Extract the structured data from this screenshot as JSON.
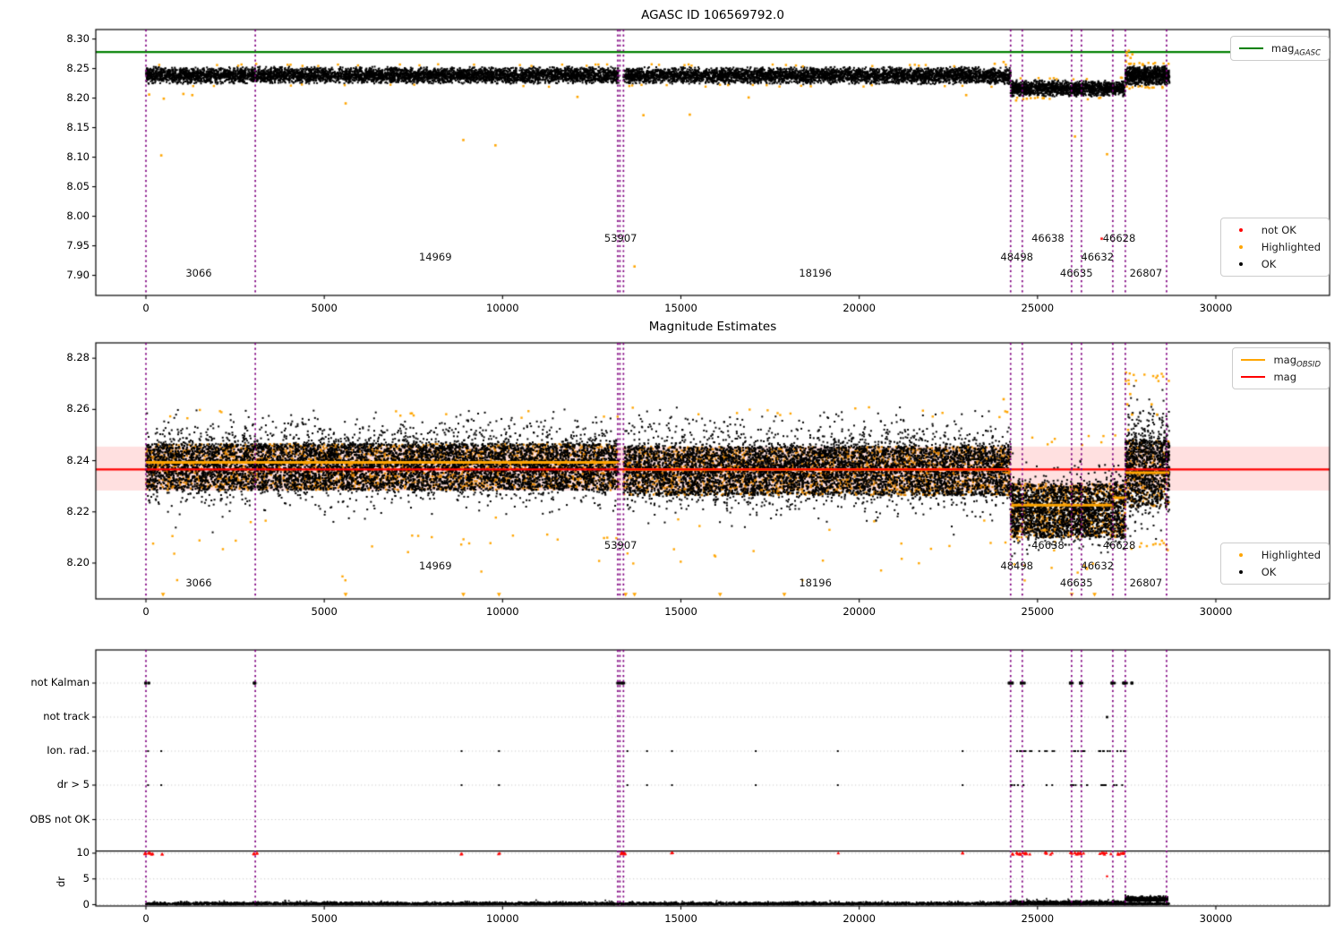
{
  "colors": {
    "green": "#008000",
    "red": "#ff0000",
    "orange": "#ffa500",
    "black": "#000000",
    "purple": "#800080",
    "pink_band": "rgba(255,0,0,0.12)",
    "grid": "#c9c9c9",
    "core_orange": "#de8300",
    "axis": "#000000"
  },
  "x_axis": {
    "ticks": [
      0,
      5000,
      10000,
      15000,
      20000,
      25000,
      30000
    ],
    "tick_labels": [
      "0",
      "5000",
      "10000",
      "15000",
      "20000",
      "25000",
      "30000"
    ],
    "xlim": [
      -1406,
      33189
    ]
  },
  "vlines_x": [
    0,
    3066,
    13230,
    13290,
    13390,
    24246,
    24573,
    25955,
    26231,
    27111,
    27462,
    28618
  ],
  "obsid_annotations": [
    {
      "text": "3066",
      "x": 1480,
      "row": 2
    },
    {
      "text": "14969",
      "x": 8116,
      "row": 1
    },
    {
      "text": "53907",
      "x": 13310,
      "row": 0
    },
    {
      "text": "18196",
      "x": 18770,
      "row": 2
    },
    {
      "text": "48498",
      "x": 24420,
      "row": 1
    },
    {
      "text": "46638",
      "x": 25290,
      "row": 0
    },
    {
      "text": "46635",
      "x": 26090,
      "row": 2
    },
    {
      "text": "46632",
      "x": 26680,
      "row": 1
    },
    {
      "text": "46628",
      "x": 27290,
      "row": 0
    },
    {
      "text": "26807",
      "x": 28040,
      "row": 2
    }
  ],
  "legends": [
    {
      "entries": [
        {
          "type": "line",
          "color": "#008000",
          "main": "mag",
          "sub": "AGASC"
        }
      ]
    },
    {
      "entries": [
        {
          "type": "dot",
          "color": "#ff0000",
          "label": "not OK"
        },
        {
          "type": "dot",
          "color": "#ffa500",
          "label": "Highlighted"
        },
        {
          "type": "dot",
          "color": "#000000",
          "label": "OK"
        }
      ]
    },
    {
      "entries": [
        {
          "type": "line",
          "color": "#ffa500",
          "main": "mag",
          "sub": "OBSID"
        },
        {
          "type": "line",
          "color": "#ff0000",
          "main": "mag",
          "sub": ""
        }
      ]
    },
    {
      "entries": [
        {
          "type": "dot",
          "color": "#ffa500",
          "label": "Highlighted"
        },
        {
          "type": "dot",
          "color": "#000000",
          "label": "OK"
        }
      ]
    }
  ],
  "chart_data": [
    {
      "type": "scatter",
      "title": "AGASC ID 106569792.0",
      "ylim": [
        7.866,
        8.316
      ],
      "y_ticks": [
        8.3,
        8.25,
        8.2,
        8.15,
        8.1,
        8.05,
        8.0,
        7.95,
        7.9
      ],
      "y_tick_labels": [
        "8.30",
        "8.25",
        "8.20",
        "8.15",
        "8.10",
        "8.05",
        "8.00",
        "7.95",
        "7.90"
      ],
      "hline_mag_agasc": 8.278,
      "black_segments": [
        {
          "x0": 0,
          "x1": 13250,
          "yc": 8.2385,
          "half": 0.0135,
          "n": 5200
        },
        {
          "x0": 13390,
          "x1": 24246,
          "yc": 8.238,
          "half": 0.0135,
          "n": 4300
        },
        {
          "x0": 24246,
          "x1": 27462,
          "yc": 8.2165,
          "half": 0.013,
          "n": 1500
        },
        {
          "x0": 27462,
          "x1": 28700,
          "yc": 8.238,
          "half": 0.016,
          "n": 800
        }
      ],
      "orange_edge_count": 110,
      "orange_outliers": [
        [
          430,
          8.103
        ],
        [
          5600,
          8.191
        ],
        [
          8900,
          8.129
        ],
        [
          9800,
          8.12
        ],
        [
          13700,
          7.915
        ],
        [
          26050,
          8.135
        ],
        [
          26950,
          8.105
        ],
        [
          12100,
          8.202
        ],
        [
          90,
          8.206
        ],
        [
          500,
          8.199
        ],
        [
          1300,
          8.205
        ],
        [
          13950,
          8.171
        ],
        [
          15250,
          8.172
        ],
        [
          1050,
          8.207
        ],
        [
          16900,
          8.201
        ],
        [
          23000,
          8.205
        ],
        [
          24400,
          8.196
        ],
        [
          24700,
          8.199
        ],
        [
          27500,
          8.277
        ],
        [
          27520,
          8.272
        ],
        [
          27560,
          8.28
        ],
        [
          27610,
          8.268
        ],
        [
          27660,
          8.274
        ],
        [
          27480,
          8.262
        ],
        [
          24050,
          8.261
        ],
        [
          23800,
          8.258
        ]
      ],
      "red_points": [
        [
          26800,
          7.962
        ]
      ]
    },
    {
      "type": "scatter",
      "title": "Magnitude Estimates",
      "ylim": [
        8.186,
        8.286
      ],
      "y_ticks": [
        8.28,
        8.26,
        8.24,
        8.22,
        8.2
      ],
      "y_tick_labels": [
        "8.28",
        "8.26",
        "8.24",
        "8.22",
        "8.20"
      ],
      "red_line_mag": 8.2366,
      "pink_band": [
        8.2283,
        8.2455
      ],
      "orange_obsid_segments": [
        {
          "x0": 0,
          "x1": 13250,
          "mag": 8.2393
        },
        {
          "x0": 13390,
          "x1": 24246,
          "mag": 8.2365
        },
        {
          "x0": 24246,
          "x1": 27111,
          "mag": 8.2226
        },
        {
          "x0": 27111,
          "x1": 27462,
          "mag": 8.2255
        },
        {
          "x0": 27462,
          "x1": 28700,
          "mag": 8.2353
        }
      ],
      "core_bands": [
        {
          "x0": 0,
          "x1": 13250,
          "m0": 8.2285,
          "m1": 8.2465,
          "no": 2600,
          "nb": 3400
        },
        {
          "x0": 13390,
          "x1": 24246,
          "m0": 8.2265,
          "m1": 8.2455,
          "no": 2200,
          "nb": 2900
        },
        {
          "x0": 24246,
          "x1": 27462,
          "m0": 8.21,
          "m1": 8.231,
          "no": 800,
          "nb": 1000
        },
        {
          "x0": 27462,
          "x1": 28700,
          "m0": 8.222,
          "m1": 8.248,
          "no": 250,
          "nb": 380
        }
      ],
      "black_fringe": [
        {
          "x0": 0,
          "x1": 13250,
          "yc": 8.239,
          "sig": 0.0078,
          "n": 3200,
          "lo": 8.207,
          "hi": 8.26
        },
        {
          "x0": 13390,
          "x1": 24246,
          "yc": 8.2375,
          "sig": 0.008,
          "n": 2800,
          "lo": 8.205,
          "hi": 8.261
        },
        {
          "x0": 24246,
          "x1": 27462,
          "yc": 8.2205,
          "sig": 0.0068,
          "n": 950,
          "lo": 8.196,
          "hi": 8.25
        },
        {
          "x0": 27462,
          "x1": 28700,
          "yc": 8.2385,
          "sig": 0.0105,
          "n": 650,
          "lo": 8.205,
          "hi": 8.275
        }
      ],
      "orange_low": {
        "n": 40,
        "x0": 200,
        "x1": 26800,
        "m0": 8.193,
        "m1": 8.219
      },
      "orange_edge_count": 90,
      "orange_high_cluster": [
        [
          27520,
          8.262
        ],
        [
          27560,
          8.27
        ],
        [
          27600,
          8.266
        ],
        [
          27650,
          8.258
        ],
        [
          27540,
          8.252
        ],
        [
          28200,
          8.262
        ],
        [
          28350,
          8.258
        ],
        [
          24050,
          8.264
        ],
        [
          24150,
          8.259
        ]
      ],
      "clip_triangles_x": [
        480,
        5600,
        8900,
        9900,
        13450,
        13700,
        16100,
        17900,
        25960,
        26600
      ]
    },
    {
      "type": "scatter",
      "title": "",
      "ylabel": "dr",
      "categories": [
        "not Kalman",
        "not track",
        "Ion. rad.",
        "dr > 5",
        "OBS not OK"
      ],
      "dr_tick_labels": [
        "10",
        "5",
        "0"
      ],
      "dr_ticks": [
        10,
        5,
        0
      ],
      "dr_hline": 10.4,
      "not_kalman_clusters": [
        [
          30,
          120,
          5
        ],
        [
          3066,
          80,
          5
        ],
        [
          13310,
          200,
          9
        ],
        [
          24246,
          160,
          7
        ],
        [
          24573,
          120,
          6
        ],
        [
          25955,
          90,
          5
        ],
        [
          26231,
          90,
          5
        ],
        [
          27111,
          120,
          6
        ],
        [
          27462,
          150,
          7
        ],
        [
          27680,
          100,
          4
        ]
      ],
      "not_track_points": [
        26950
      ],
      "ion_rad_singles": [
        60,
        430,
        8850,
        9900,
        13500,
        14050,
        14750,
        17100,
        19400,
        22900,
        25050
      ],
      "ion_rad_clusters": [
        [
          24550,
          600,
          8
        ],
        [
          25350,
          280,
          4
        ],
        [
          26150,
          520,
          8
        ],
        [
          26900,
          380,
          6
        ],
        [
          27350,
          260,
          5
        ]
      ],
      "dr5_singles": [
        60,
        430,
        8850,
        9900,
        13500,
        14050,
        14750,
        17100,
        19400,
        22900
      ],
      "dr5_clusters": [
        [
          24550,
          600,
          6
        ],
        [
          25350,
          280,
          3
        ],
        [
          26150,
          520,
          8
        ],
        [
          27050,
          700,
          8
        ]
      ],
      "obs_not_ok_points": [],
      "red_dr10_clusters": [
        [
          80,
          220,
          9
        ],
        [
          430,
          60,
          2
        ],
        [
          3066,
          110,
          5
        ],
        [
          8850,
          40,
          2
        ],
        [
          9900,
          40,
          2
        ],
        [
          13360,
          220,
          9
        ],
        [
          14750,
          40,
          2
        ],
        [
          19400,
          30,
          1
        ],
        [
          22900,
          40,
          2
        ],
        [
          24520,
          560,
          14
        ],
        [
          25330,
          260,
          5
        ],
        [
          26150,
          480,
          10
        ],
        [
          26900,
          340,
          8
        ],
        [
          27350,
          240,
          7
        ]
      ],
      "red_singles": [
        [
          26950,
          5.5
        ]
      ],
      "noise_segments": [
        {
          "x0": 0,
          "x1": 28700,
          "base": 0.02,
          "sig": 0.22,
          "n": 5200
        },
        {
          "x0": 24246,
          "x1": 27462,
          "base": 0.12,
          "sig": 0.3,
          "n": 800
        },
        {
          "x0": 27462,
          "x1": 28650,
          "base": 0.8,
          "sig": 0.3,
          "n": 1000
        }
      ]
    }
  ]
}
